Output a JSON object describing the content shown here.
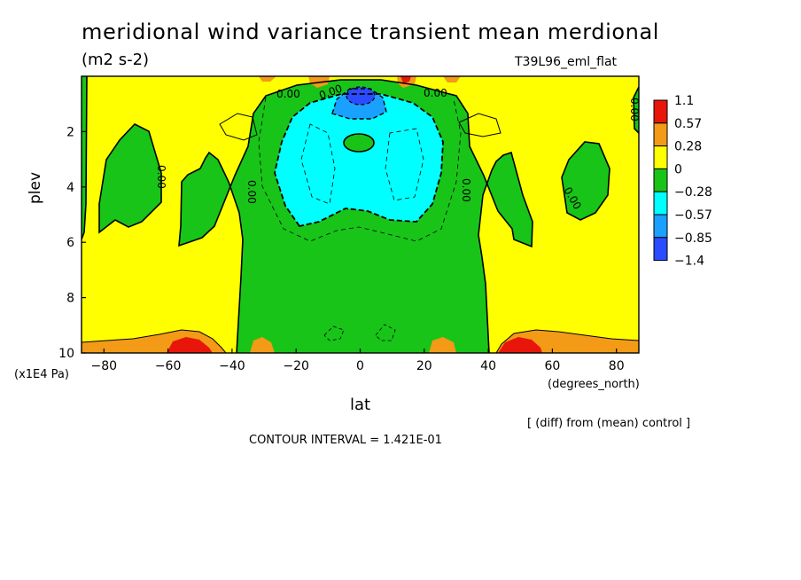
{
  "title": "meridional wind variance transient mean merdional",
  "units": "(m2 s-2)",
  "run_label": "T39L96_eml_flat",
  "note": "[ (diff) from (mean) control ]",
  "contour_interval": "CONTOUR INTERVAL = 1.421E-01",
  "contour_label": "0.00",
  "colors": {
    "red": "#e8160a",
    "orange": "#f39a16",
    "yellow": "#ffff00",
    "green": "#18c418",
    "cyan": "#00ffff",
    "midblue": "#1aa0ff",
    "blue": "#2a4bff"
  },
  "chart_data": {
    "type": "heatmap",
    "title": "meridional wind variance transient mean merdional",
    "xlabel": "lat",
    "xunit": "(degrees_north)",
    "ylabel": "plev",
    "yunit": "(x1E4 Pa)",
    "xlim": [
      -87,
      87
    ],
    "ylim": [
      0,
      10
    ],
    "y_inverted": true,
    "x_ticks": [
      -80,
      -60,
      -40,
      -20,
      0,
      20,
      40,
      60,
      80
    ],
    "y_ticks": [
      2,
      4,
      6,
      8,
      10
    ],
    "colorbar": {
      "labels": [
        "1.1",
        "0.57",
        "0.28",
        "0",
        "−0.28",
        "−0.57",
        "−0.85",
        "−1.4"
      ],
      "colors": [
        "#e8160a",
        "#f39a16",
        "#ffff00",
        "#18c418",
        "#00ffff",
        "#1aa0ff",
        "#2a4bff"
      ]
    }
  }
}
